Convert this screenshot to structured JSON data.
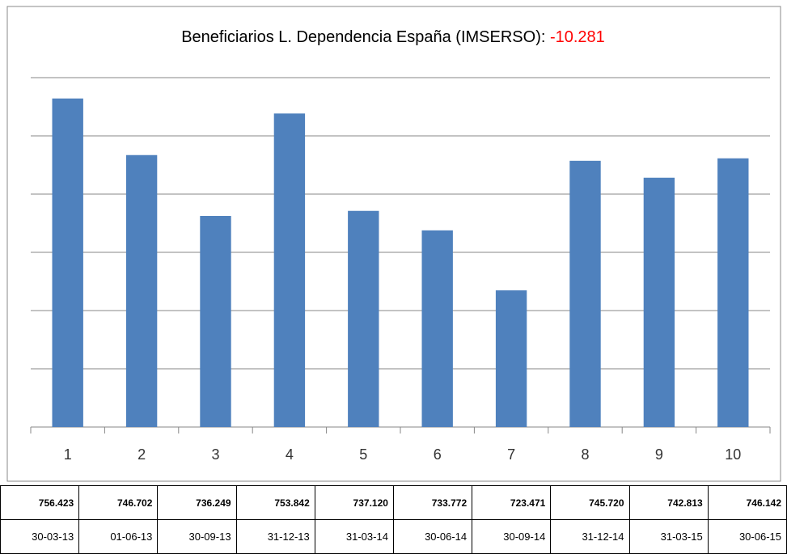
{
  "chart_data": {
    "type": "bar",
    "title": "Beneficiarios L. Dependencia España (IMSERSO): ",
    "annotation": "-10.281",
    "categories": [
      "1",
      "2",
      "3",
      "4",
      "5",
      "6",
      "7",
      "8",
      "9",
      "10"
    ],
    "values": [
      756423,
      746702,
      736249,
      753842,
      737120,
      733772,
      723471,
      745720,
      742813,
      746142
    ],
    "value_labels": [
      "756.423",
      "746.702",
      "736.249",
      "753.842",
      "737.120",
      "733.772",
      "723.471",
      "745.720",
      "742.813",
      "746.142"
    ],
    "dates": [
      "30-03-13",
      "01-06-13",
      "30-09-13",
      "31-12-13",
      "31-03-14",
      "30-06-14",
      "30-09-14",
      "31-12-14",
      "31-03-15",
      "30-06-15"
    ],
    "color": "#4f81bd",
    "ylim": [
      700000,
      760000
    ],
    "yticks": [
      700000,
      710000,
      720000,
      730000,
      740000,
      750000,
      760000
    ],
    "grid": true
  }
}
